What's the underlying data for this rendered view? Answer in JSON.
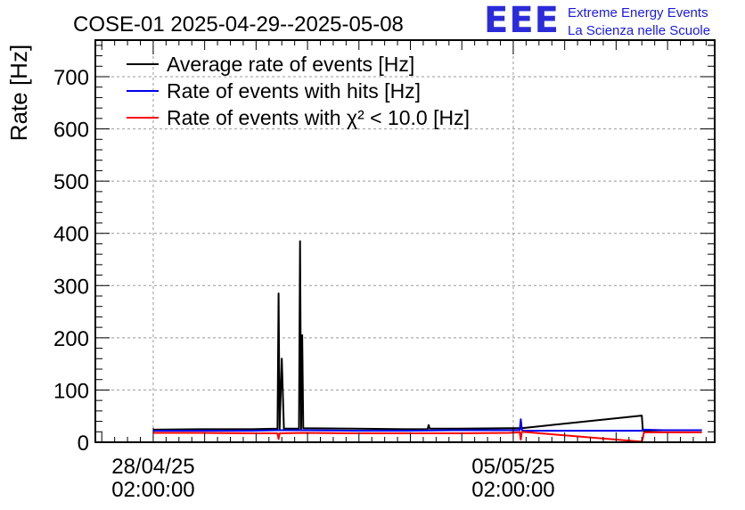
{
  "chart_data": {
    "type": "line",
    "title": "COSE-01 2025-04-29--2025-05-08",
    "ylabel": "Rate [Hz]",
    "xlabel": "",
    "ylim": [
      0,
      770
    ],
    "xlim": [
      "2025-04-26 23:00",
      "2025-05-09 00:00"
    ],
    "grid": true,
    "legend_position": "top-left",
    "x_tick_labels": [
      {
        "at": "2025-04-28 02:00",
        "line1": "28/04/25",
        "line2": "02:00:00"
      },
      {
        "at": "2025-05-05 02:00",
        "line1": "05/05/25",
        "line2": "02:00:00"
      }
    ],
    "y_ticks": [
      0,
      100,
      200,
      300,
      400,
      500,
      600,
      700
    ],
    "series": [
      {
        "name": "Average rate of events [Hz]",
        "color": "#000000",
        "points": [
          [
            "2025-04-28 02:00",
            24
          ],
          [
            "2025-04-29 00:00",
            25
          ],
          [
            "2025-04-30 00:00",
            25
          ],
          [
            "2025-04-30 12:00",
            26
          ],
          [
            "2025-04-30 12:30",
            285
          ],
          [
            "2025-04-30 13:00",
            26
          ],
          [
            "2025-04-30 14:00",
            160
          ],
          [
            "2025-04-30 15:00",
            26
          ],
          [
            "2025-04-30 22:00",
            26
          ],
          [
            "2025-04-30 22:30",
            385
          ],
          [
            "2025-04-30 23:00",
            26
          ],
          [
            "2025-04-30 23:30",
            205
          ],
          [
            "2025-05-01 00:00",
            27
          ],
          [
            "2025-05-02 00:00",
            26
          ],
          [
            "2025-05-03 00:00",
            25
          ],
          [
            "2025-05-03 10:00",
            25
          ],
          [
            "2025-05-03 10:30",
            33
          ],
          [
            "2025-05-03 11:00",
            26
          ],
          [
            "2025-05-04 00:00",
            26
          ],
          [
            "2025-05-05 00:00",
            27
          ],
          [
            "2025-05-05 06:00",
            27
          ],
          [
            "2025-05-07 14:00",
            51
          ],
          [
            "2025-05-07 14:30",
            22
          ],
          [
            "2025-05-08 00:00",
            23
          ],
          [
            "2025-05-08 18:00",
            23
          ]
        ]
      },
      {
        "name": "Rate of events with hits [Hz]",
        "color": "#0000ee",
        "points": [
          [
            "2025-04-28 02:00",
            22
          ],
          [
            "2025-04-29 00:00",
            22
          ],
          [
            "2025-04-30 00:00",
            22
          ],
          [
            "2025-04-30 12:00",
            23
          ],
          [
            "2025-05-01 00:00",
            23
          ],
          [
            "2025-05-02 00:00",
            22
          ],
          [
            "2025-05-03 00:00",
            22
          ],
          [
            "2025-05-04 00:00",
            23
          ],
          [
            "2025-05-05 00:00",
            23
          ],
          [
            "2025-05-05 05:00",
            23
          ],
          [
            "2025-05-05 05:30",
            44
          ],
          [
            "2025-05-05 06:00",
            24
          ],
          [
            "2025-05-05 06:30",
            22
          ],
          [
            "2025-05-07 14:00",
            22
          ],
          [
            "2025-05-07 14:30",
            24
          ],
          [
            "2025-05-08 00:00",
            23
          ],
          [
            "2025-05-08 18:00",
            23
          ]
        ]
      },
      {
        "name": "Rate of events with χ² < 10.0 [Hz]",
        "color": "#ff0000",
        "points": [
          [
            "2025-04-28 02:00",
            18
          ],
          [
            "2025-04-29 00:00",
            18
          ],
          [
            "2025-04-30 00:00",
            17
          ],
          [
            "2025-04-30 12:00",
            17
          ],
          [
            "2025-04-30 12:30",
            6
          ],
          [
            "2025-04-30 13:00",
            17
          ],
          [
            "2025-05-01 00:00",
            18
          ],
          [
            "2025-05-02 00:00",
            17
          ],
          [
            "2025-05-03 00:00",
            17
          ],
          [
            "2025-05-04 00:00",
            17
          ],
          [
            "2025-05-05 00:00",
            18
          ],
          [
            "2025-05-05 05:00",
            19
          ],
          [
            "2025-05-05 05:30",
            5
          ],
          [
            "2025-05-05 06:00",
            20
          ],
          [
            "2025-05-07 14:00",
            1
          ],
          [
            "2025-05-07 14:30",
            8
          ],
          [
            "2025-05-07 15:00",
            19
          ],
          [
            "2025-05-08 00:00",
            19
          ],
          [
            "2025-05-08 18:00",
            19
          ]
        ]
      }
    ]
  },
  "logo": {
    "mark": "EEE",
    "line1": "Extreme Energy Events",
    "line2": "La Scienza nelle Scuole"
  }
}
